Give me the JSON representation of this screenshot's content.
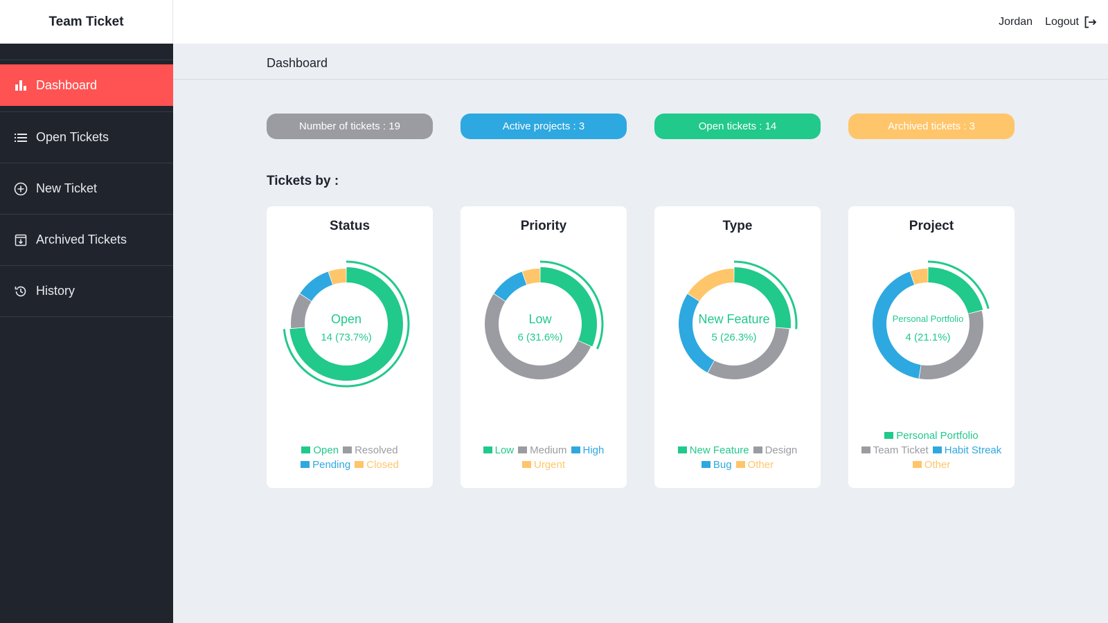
{
  "app": {
    "brand": "Team Ticket"
  },
  "header": {
    "user": "Jordan",
    "logout_label": "Logout"
  },
  "sidebar": {
    "items": [
      {
        "label": "Dashboard",
        "icon": "bar-chart-icon",
        "active": true
      },
      {
        "label": "Open Tickets",
        "icon": "list-icon"
      },
      {
        "label": "New Ticket",
        "icon": "plus-circle-icon"
      },
      {
        "label": "Archived Tickets",
        "icon": "archive-icon"
      },
      {
        "label": "History",
        "icon": "history-icon"
      }
    ]
  },
  "breadcrumb": "Dashboard",
  "stats": [
    {
      "label": "Number of tickets : 19",
      "color": "#9a9ca1"
    },
    {
      "label": "Active projects : 3",
      "color": "#2ea8e0"
    },
    {
      "label": "Open tickets : 14",
      "color": "#21c98b"
    },
    {
      "label": "Archived tickets : 3",
      "color": "#ffc56a"
    }
  ],
  "section_title": "Tickets by :",
  "colors": {
    "green": "#21c98b",
    "gray": "#9a9ca1",
    "blue": "#2ea8e0",
    "orange": "#ffc56a"
  },
  "chart_data": [
    {
      "type": "pie",
      "title": "Status",
      "categories": [
        "Open",
        "Resolved",
        "Pending",
        "Closed"
      ],
      "values": [
        14,
        2,
        2,
        1
      ],
      "colors": [
        "#21c98b",
        "#9a9ca1",
        "#2ea8e0",
        "#ffc56a"
      ],
      "highlight_index": 0,
      "center_label": "Open",
      "center_value": "14 (73.7%)"
    },
    {
      "type": "pie",
      "title": "Priority",
      "categories": [
        "Low",
        "Medium",
        "High",
        "Urgent"
      ],
      "values": [
        6,
        10,
        2,
        1
      ],
      "colors": [
        "#21c98b",
        "#9a9ca1",
        "#2ea8e0",
        "#ffc56a"
      ],
      "highlight_index": 0,
      "center_label": "Low",
      "center_value": "6 (31.6%)"
    },
    {
      "type": "pie",
      "title": "Type",
      "categories": [
        "New Feature",
        "Design",
        "Bug",
        "Other"
      ],
      "values": [
        5,
        6,
        5,
        3
      ],
      "colors": [
        "#21c98b",
        "#9a9ca1",
        "#2ea8e0",
        "#ffc56a"
      ],
      "highlight_index": 0,
      "center_label": "New Feature",
      "center_value": "5 (26.3%)"
    },
    {
      "type": "pie",
      "title": "Project",
      "categories": [
        "Personal Portfolio",
        "Team Ticket",
        "Habit Streak",
        "Other"
      ],
      "values": [
        4,
        6,
        8,
        1
      ],
      "colors": [
        "#21c98b",
        "#9a9ca1",
        "#2ea8e0",
        "#ffc56a"
      ],
      "highlight_index": 0,
      "center_label": "Personal Portfolio",
      "center_value": "4 (21.1%)"
    }
  ]
}
